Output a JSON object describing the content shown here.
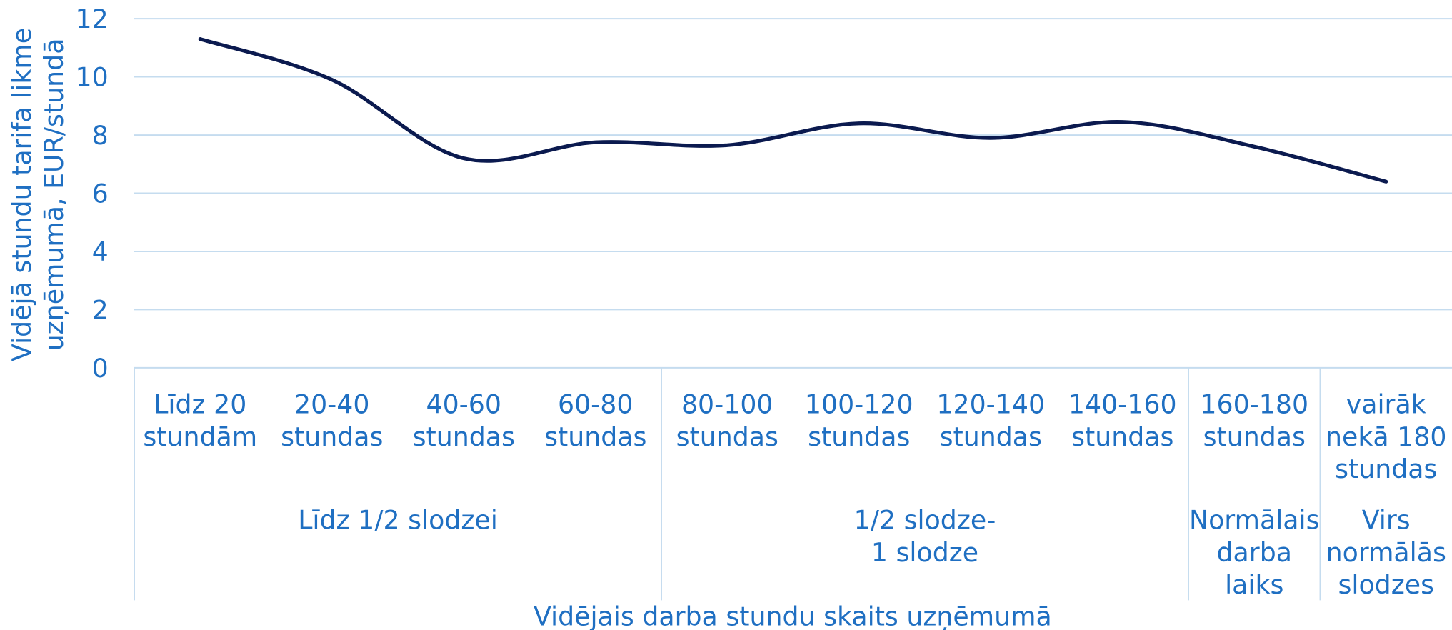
{
  "chart_data": {
    "type": "line",
    "categories": [
      "Līdz 20\nstundām",
      "20-40\nstundas",
      "40-60\nstundas",
      "60-80\nstundas",
      "80-100\nstundas",
      "100-120\nstundas",
      "120-140\nstundas",
      "140-160\nstundas",
      "160-180\nstundas",
      "vairāk\nnekā 180\nstundas"
    ],
    "groups": [
      {
        "label": "Līdz 1/2 slodzei",
        "span": 4
      },
      {
        "label": "1/2 slodze-\n1 slodze",
        "span": 4
      },
      {
        "label": "Normālais\ndarba\nlaiks",
        "span": 1
      },
      {
        "label": "Virs\nnormālās\nslodzes",
        "span": 1
      }
    ],
    "series": [
      {
        "name": null,
        "color": "#0b1a4f",
        "values": [
          11.3,
          9.9,
          7.2,
          7.75,
          7.65,
          8.4,
          7.9,
          8.45,
          7.6,
          6.4
        ]
      }
    ],
    "ylim": [
      0,
      12
    ],
    "yticks": [
      0,
      2,
      4,
      6,
      8,
      10,
      12
    ],
    "grid": true,
    "smooth": true,
    "y_label": "Vidējā stundu tarifa likme\nuzņēmumā, EUR/stundā",
    "x_label": "Vidējais darba stundu skaits uzņēmumā"
  }
}
